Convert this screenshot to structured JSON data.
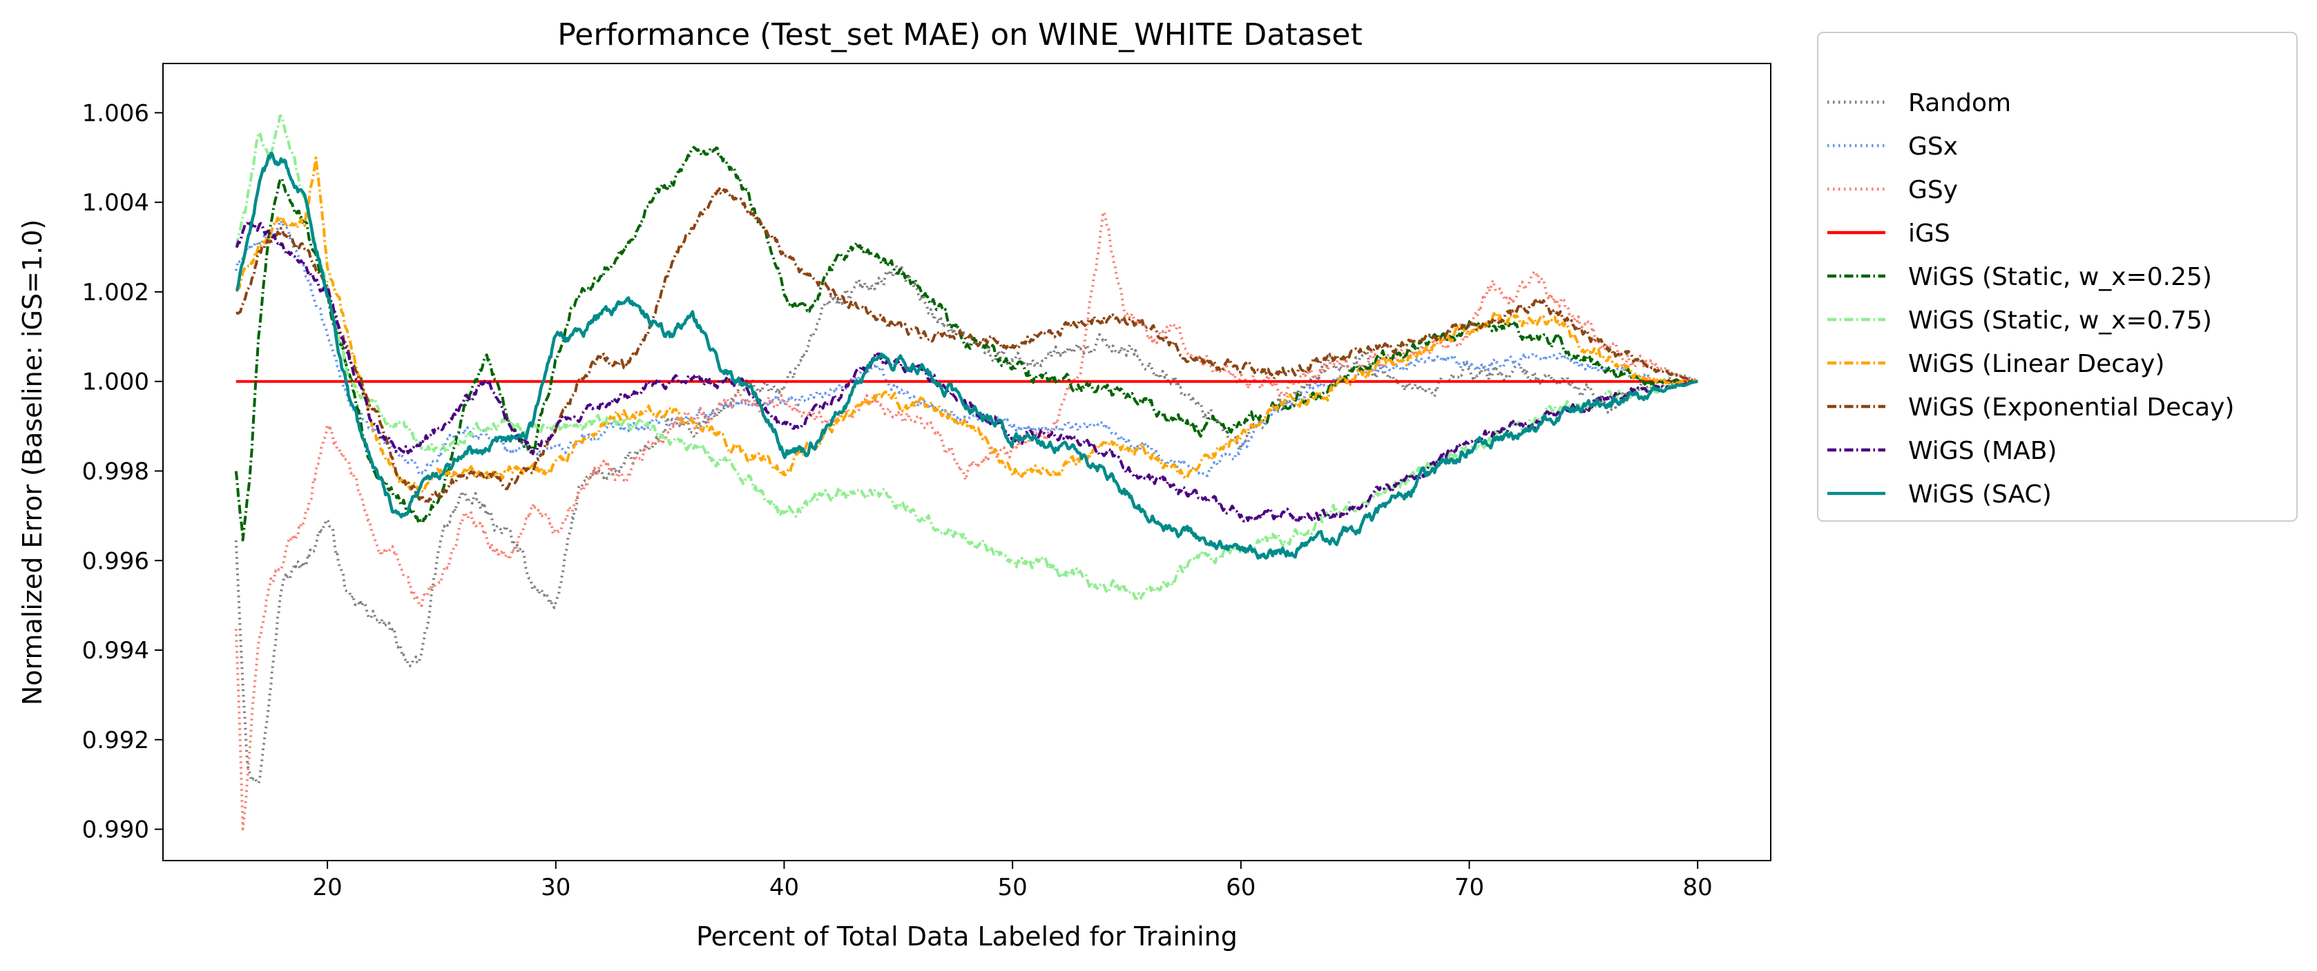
{
  "chart_data": {
    "type": "line",
    "title": "Performance (Test_set MAE) on WINE_WHITE Dataset",
    "xlabel": "Percent of Total Data Labeled for Training",
    "ylabel": "Normalized Error (Baseline: iGS=1.0)",
    "xlim": [
      12.8,
      83.2
    ],
    "ylim": [
      0.9893,
      1.0071
    ],
    "xticks": [
      20,
      30,
      40,
      50,
      60,
      70,
      80
    ],
    "xtick_labels": [
      "20",
      "30",
      "40",
      "50",
      "60",
      "70",
      "80"
    ],
    "yticks": [
      0.99,
      0.992,
      0.994,
      0.996,
      0.998,
      1.0,
      1.002,
      1.004,
      1.006
    ],
    "ytick_labels": [
      "0.990",
      "0.992",
      "0.994",
      "0.996",
      "0.998",
      "1.000",
      "1.002",
      "1.004",
      "1.006"
    ],
    "grid": false,
    "legend_position": "outside-right-top",
    "series": [
      {
        "name": "Random",
        "color": "#808080",
        "dash": "dotted",
        "noise": 0.00045,
        "x": [
          16,
          16.5,
          17,
          17.5,
          18,
          19,
          20,
          21,
          22,
          23,
          24,
          25,
          26,
          27,
          28,
          29,
          30,
          31,
          32,
          33,
          34,
          35,
          36,
          37,
          38,
          39,
          40,
          41,
          42,
          43,
          44,
          45,
          46,
          47,
          48,
          49,
          50,
          52,
          54,
          56,
          58,
          60,
          62,
          64,
          66,
          68,
          70,
          72,
          74,
          76,
          78,
          79,
          80
        ],
        "y": [
          0.9965,
          0.9915,
          0.991,
          0.9935,
          0.9955,
          0.996,
          0.997,
          0.995,
          0.9948,
          0.9942,
          0.9935,
          0.9965,
          0.9975,
          0.997,
          0.9965,
          0.9955,
          0.995,
          0.9975,
          0.998,
          0.998,
          0.9985,
          0.999,
          0.9988,
          0.9992,
          0.9998,
          1.0,
          0.9998,
          1.0008,
          1.0018,
          1.002,
          1.0023,
          1.0025,
          1.002,
          1.0012,
          1.001,
          1.0007,
          1.0005,
          1.0005,
          1.0008,
          1.0005,
          0.9995,
          0.9985,
          0.9995,
          1.0005,
          1.0003,
          0.9998,
          1.0002,
          1.0002,
          1.0,
          0.9995,
          0.9998,
          1.0002,
          1.0
        ]
      },
      {
        "name": "GSx",
        "color": "#6495ed",
        "dash": "dotted",
        "noise": 0.0003,
        "x": [
          16,
          16.5,
          17,
          18,
          19,
          20,
          21,
          22,
          23,
          24,
          25,
          26,
          27,
          28,
          30,
          32,
          34,
          36,
          38,
          40,
          42,
          44,
          46,
          48,
          50,
          52,
          54,
          56,
          58,
          60,
          62,
          64,
          66,
          68,
          70,
          72,
          74,
          76,
          78,
          80
        ],
        "y": [
          1.0025,
          1.003,
          1.003,
          1.0035,
          1.0025,
          1.001,
          0.9995,
          0.999,
          0.9985,
          0.998,
          0.9985,
          0.999,
          0.9988,
          0.9985,
          0.9985,
          0.9988,
          0.999,
          0.9992,
          0.9995,
          0.9995,
          0.9998,
          1.0003,
          0.9995,
          0.9992,
          0.999,
          0.999,
          0.999,
          0.9985,
          0.998,
          0.9985,
          0.9995,
          1.0,
          1.0003,
          1.0005,
          1.0003,
          1.0005,
          1.0005,
          1.0003,
          1.0,
          1.0
        ]
      },
      {
        "name": "GSy",
        "color": "#fa8072",
        "dash": "dotted",
        "noise": 0.00045,
        "x": [
          16,
          16.3,
          16.7,
          17,
          17.5,
          18,
          19,
          20,
          21,
          22,
          23,
          24,
          25,
          26,
          27,
          28,
          29,
          30,
          31,
          32,
          33,
          34,
          35,
          36,
          38,
          40,
          42,
          44,
          46,
          48,
          50,
          52,
          53,
          54,
          55,
          56,
          57,
          58,
          60,
          62,
          64,
          66,
          68,
          70,
          71,
          72,
          73,
          74,
          76,
          78,
          80
        ],
        "y": [
          0.9945,
          0.99,
          0.9925,
          0.994,
          0.9955,
          0.996,
          0.997,
          0.999,
          0.998,
          0.9965,
          0.996,
          0.995,
          0.9955,
          0.997,
          0.9965,
          0.996,
          0.997,
          0.9965,
          0.9975,
          0.998,
          0.998,
          0.9985,
          0.999,
          0.9992,
          0.9995,
          0.9995,
          0.999,
          0.9995,
          0.999,
          0.998,
          0.9985,
          0.999,
          1.0005,
          1.0037,
          1.0015,
          1.001,
          1.0012,
          1.0005,
          1.0,
          0.9998,
          1.0003,
          1.0005,
          1.0008,
          1.0012,
          1.002,
          1.0018,
          1.0022,
          1.0018,
          1.0008,
          1.0003,
          1.0
        ]
      },
      {
        "name": "iGS",
        "color": "#ff0000",
        "dash": "solid",
        "noise": 0,
        "x": [
          16,
          80
        ],
        "y": [
          1.0,
          1.0
        ]
      },
      {
        "name": "WiGS (Static, w_x=0.25)",
        "color": "#006400",
        "dash": "dashdot",
        "noise": 0.00035,
        "x": [
          16,
          16.3,
          16.7,
          17,
          17.5,
          18,
          19,
          20,
          21,
          22,
          23,
          24,
          25,
          26,
          27,
          28,
          29,
          30,
          31,
          32,
          33,
          34,
          35,
          36,
          37,
          38,
          39,
          40,
          41,
          42,
          43,
          44,
          45,
          46,
          47,
          48,
          50,
          52,
          54,
          56,
          58,
          60,
          62,
          64,
          66,
          68,
          70,
          72,
          74,
          76,
          78,
          80
        ],
        "y": [
          0.998,
          0.9965,
          0.9985,
          1.001,
          1.0035,
          1.0045,
          1.0035,
          1.002,
          1.0,
          0.998,
          0.9975,
          0.997,
          0.9975,
          0.9995,
          1.0005,
          0.999,
          0.9985,
          1.0005,
          1.002,
          1.0025,
          1.003,
          1.004,
          1.0045,
          1.005,
          1.005,
          1.0045,
          1.0035,
          1.002,
          1.0015,
          1.0025,
          1.003,
          1.0028,
          1.0025,
          1.002,
          1.0015,
          1.001,
          1.0003,
          1.0,
          0.9998,
          0.9995,
          0.999,
          0.999,
          0.9995,
          0.9998,
          1.0005,
          1.0008,
          1.0012,
          1.0012,
          1.0008,
          1.0003,
          1.0,
          1.0
        ]
      },
      {
        "name": "WiGS (Static, w_x=0.75)",
        "color": "#90ee90",
        "dash": "dashdot",
        "noise": 0.00035,
        "x": [
          16,
          16.5,
          17,
          17.5,
          18,
          19,
          20,
          21,
          22,
          23,
          24,
          25,
          26,
          27,
          28,
          29,
          30,
          32,
          34,
          36,
          38,
          40,
          42,
          44,
          46,
          48,
          50,
          52,
          54,
          56,
          58,
          60,
          62,
          64,
          66,
          68,
          70,
          72,
          74,
          76,
          78,
          80
        ],
        "y": [
          1.003,
          1.004,
          1.0055,
          1.005,
          1.006,
          1.004,
          1.002,
          1.0,
          0.9995,
          0.999,
          0.9985,
          0.9985,
          0.9988,
          0.999,
          0.999,
          0.9988,
          0.999,
          0.9992,
          0.999,
          0.9985,
          0.998,
          0.997,
          0.9975,
          0.9975,
          0.997,
          0.9965,
          0.996,
          0.9958,
          0.9955,
          0.9952,
          0.996,
          0.9963,
          0.9965,
          0.997,
          0.9975,
          0.998,
          0.9985,
          0.999,
          0.9993,
          0.9996,
          0.9998,
          1.0
        ]
      },
      {
        "name": "WiGS (Linear Decay)",
        "color": "#ffa500",
        "dash": "dashdot",
        "noise": 0.00035,
        "x": [
          16,
          16.5,
          17,
          18,
          19,
          19.5,
          20,
          21,
          22,
          23,
          24,
          25,
          26,
          27,
          28,
          29,
          30,
          32,
          34,
          36,
          38,
          40,
          42,
          44,
          46,
          48,
          50,
          52,
          54,
          56,
          57,
          58,
          60,
          62,
          64,
          66,
          68,
          70,
          72,
          74,
          76,
          78,
          80
        ],
        "y": [
          1.002,
          1.0025,
          1.003,
          1.0035,
          1.0035,
          1.005,
          1.0025,
          1.001,
          0.999,
          0.998,
          0.9975,
          0.998,
          0.998,
          0.9978,
          0.998,
          0.998,
          0.998,
          0.999,
          0.9995,
          0.999,
          0.9985,
          0.998,
          0.999,
          0.9995,
          0.9995,
          0.999,
          0.998,
          0.998,
          0.9985,
          0.9985,
          0.998,
          0.998,
          0.9988,
          0.9995,
          0.9998,
          1.0003,
          1.0007,
          1.0012,
          1.0015,
          1.0012,
          1.0005,
          1.0,
          1.0
        ]
      },
      {
        "name": "WiGS (Exponential Decay)",
        "color": "#8b4513",
        "dash": "dashdot",
        "noise": 0.0003,
        "x": [
          16,
          16.5,
          17,
          18,
          19,
          20,
          21,
          22,
          23,
          24,
          25,
          26,
          27,
          28,
          29,
          30,
          31,
          32,
          33,
          34,
          35,
          36,
          37,
          38,
          39,
          40,
          42,
          44,
          46,
          48,
          50,
          52,
          54,
          56,
          58,
          60,
          62,
          64,
          66,
          68,
          70,
          72,
          73,
          74,
          76,
          78,
          80
        ],
        "y": [
          1.0015,
          1.002,
          1.003,
          1.0035,
          1.003,
          1.002,
          1.0005,
          0.9995,
          0.998,
          0.9975,
          0.9975,
          0.998,
          0.998,
          0.9978,
          0.998,
          0.999,
          1.0,
          1.0005,
          1.0003,
          1.001,
          1.0025,
          1.0035,
          1.0042,
          1.004,
          1.0035,
          1.0028,
          1.002,
          1.0015,
          1.001,
          1.001,
          1.0008,
          1.0012,
          1.0015,
          1.0012,
          1.0005,
          1.0003,
          1.0002,
          1.0005,
          1.0007,
          1.001,
          1.0012,
          1.0015,
          1.0018,
          1.0015,
          1.0008,
          1.0003,
          1.0
        ]
      },
      {
        "name": "WiGS (MAB)",
        "color": "#4b0082",
        "dash": "dashdot",
        "noise": 0.0003,
        "x": [
          16,
          16.5,
          17,
          18,
          19,
          20,
          21,
          22,
          23,
          24,
          25,
          26,
          27,
          28,
          29,
          30,
          32,
          34,
          36,
          38,
          40,
          42,
          44,
          46,
          48,
          50,
          52,
          54,
          56,
          58,
          60,
          62,
          64,
          66,
          68,
          70,
          72,
          74,
          76,
          78,
          80
        ],
        "y": [
          1.003,
          1.0035,
          1.0035,
          1.003,
          1.0025,
          1.002,
          1.0005,
          0.999,
          0.9985,
          0.9985,
          0.999,
          0.9995,
          1.0,
          0.999,
          0.9985,
          0.999,
          0.9995,
          1.0,
          1.0,
          1.0,
          0.999,
          0.9995,
          1.0005,
          1.0003,
          0.9995,
          0.9988,
          0.9988,
          0.9985,
          0.9978,
          0.9975,
          0.997,
          0.997,
          0.997,
          0.9975,
          0.998,
          0.9987,
          0.999,
          0.9993,
          0.9996,
          0.9998,
          1.0
        ]
      },
      {
        "name": "WiGS (SAC)",
        "color": "#008b8b",
        "dash": "solid",
        "noise": 0.00035,
        "x": [
          16,
          16.5,
          17,
          17.5,
          18,
          19,
          20,
          21,
          22,
          23,
          24,
          25,
          26,
          27,
          28,
          29,
          30,
          31,
          32,
          33,
          34,
          35,
          36,
          37,
          38,
          39,
          40,
          41,
          42,
          43,
          44,
          46,
          48,
          50,
          52,
          54,
          56,
          58,
          60,
          62,
          64,
          66,
          68,
          70,
          72,
          74,
          76,
          78,
          80
        ],
        "y": [
          1.002,
          1.003,
          1.0045,
          1.005,
          1.005,
          1.004,
          1.002,
          0.9995,
          0.998,
          0.997,
          0.9975,
          0.998,
          0.9985,
          0.9985,
          0.9988,
          0.999,
          1.001,
          1.001,
          1.0015,
          1.0017,
          1.0015,
          1.001,
          1.0015,
          1.0005,
          1.0,
          0.9995,
          0.9985,
          0.9985,
          0.999,
          0.9998,
          1.0005,
          1.0003,
          0.9995,
          0.9988,
          0.9985,
          0.998,
          0.997,
          0.9965,
          0.9962,
          0.9962,
          0.9965,
          0.997,
          0.9978,
          0.9985,
          0.9988,
          0.9993,
          0.9995,
          0.9998,
          1.0
        ]
      }
    ]
  }
}
